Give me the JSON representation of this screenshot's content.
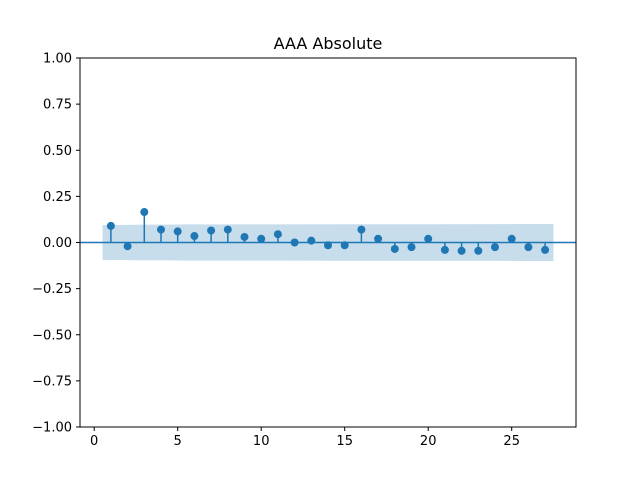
{
  "chart_data": {
    "type": "scatter",
    "title": "AAA Absolute",
    "xlabel": "",
    "ylabel": "",
    "xlim": [
      -0.85,
      28.85
    ],
    "ylim": [
      -1.0,
      1.0
    ],
    "x_ticks": [
      0,
      5,
      10,
      15,
      20,
      25
    ],
    "y_ticks": [
      -1.0,
      -0.75,
      -0.5,
      -0.25,
      0.0,
      0.25,
      0.5,
      0.75,
      1.0
    ],
    "x_tick_labels": [
      "0",
      "5",
      "10",
      "15",
      "20",
      "25"
    ],
    "y_tick_labels": [
      "−1.00",
      "−0.75",
      "−0.50",
      "−0.25",
      "0.00",
      "0.25",
      "0.50",
      "0.75",
      "1.00"
    ],
    "lags": [
      1,
      2,
      3,
      4,
      5,
      6,
      7,
      8,
      9,
      10,
      11,
      12,
      13,
      14,
      15,
      16,
      17,
      18,
      19,
      20,
      21,
      22,
      23,
      24,
      25,
      26,
      27
    ],
    "values": [
      0.09,
      -0.02,
      0.165,
      0.07,
      0.06,
      0.035,
      0.065,
      0.07,
      0.03,
      0.02,
      0.045,
      0.0,
      0.01,
      -0.015,
      -0.015,
      0.07,
      0.02,
      -0.035,
      -0.025,
      0.02,
      -0.04,
      -0.045,
      -0.045,
      -0.025,
      0.02,
      -0.025,
      -0.04
    ],
    "confidence_band": {
      "x": [
        0.5,
        1.5,
        2.5,
        3.5,
        4.5,
        5.5,
        10.5,
        15.5,
        20.5,
        25.5,
        27.5
      ],
      "upper": [
        0.095,
        0.095,
        0.096,
        0.097,
        0.097,
        0.098,
        0.098,
        0.099,
        0.099,
        0.1,
        0.1
      ],
      "lower": [
        -0.095,
        -0.095,
        -0.096,
        -0.097,
        -0.097,
        -0.098,
        -0.098,
        -0.099,
        -0.099,
        -0.1,
        -0.1
      ]
    },
    "grid": false,
    "legend": "none",
    "colors": {
      "marker": "#1f77b4",
      "band": "#1f77b4",
      "zero_line": "#1f77b4"
    }
  }
}
